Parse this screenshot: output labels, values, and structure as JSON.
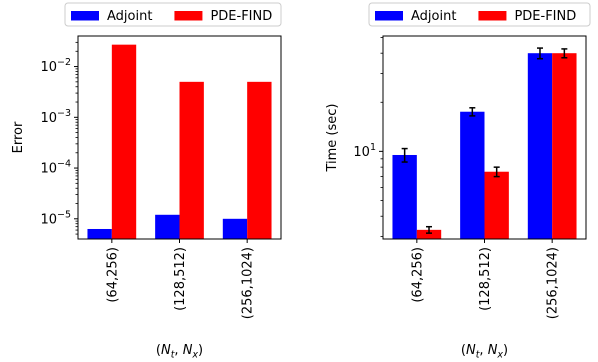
{
  "chart_data": [
    {
      "type": "bar",
      "ylabel": "Error",
      "xlabel_base": "N",
      "xlabel_sub1": "t",
      "xlabel_sub2": "x",
      "yscale": "log",
      "ylim": [
        4e-06,
        0.04
      ],
      "categories": [
        "(64,256)",
        "(128,512)",
        "(256,1024)"
      ],
      "yticks": [
        {
          "value": 1e-05,
          "base": "10",
          "exp": "−5"
        },
        {
          "value": 0.0001,
          "base": "10",
          "exp": "−4"
        },
        {
          "value": 0.001,
          "base": "10",
          "exp": "−3"
        },
        {
          "value": 0.01,
          "base": "10",
          "exp": "−2"
        }
      ],
      "legend": "top",
      "series": [
        {
          "name": "Adjoint",
          "color": "#0000ff",
          "values": [
            6.3e-06,
            1.2e-05,
            1e-05
          ]
        },
        {
          "name": "PDE-FIND",
          "color": "#ff0000",
          "values": [
            0.027,
            0.005,
            0.005
          ]
        }
      ]
    },
    {
      "type": "bar",
      "ylabel": "Time (sec)",
      "xlabel_base": "N",
      "xlabel_sub1": "t",
      "xlabel_sub2": "x",
      "yscale": "log",
      "ylim": [
        2.9,
        51
      ],
      "categories": [
        "(64,256)",
        "(128,512)",
        "(256,1024)"
      ],
      "yticks": [
        {
          "value": 10,
          "base": "10",
          "exp": "1"
        }
      ],
      "legend": "top",
      "series": [
        {
          "name": "Adjoint",
          "color": "#0000ff",
          "values": [
            9.5,
            17.5,
            40
          ],
          "errors": [
            0.9,
            1.0,
            3.0
          ]
        },
        {
          "name": "PDE-FIND",
          "color": "#ff0000",
          "values": [
            3.3,
            7.5,
            40
          ],
          "errors": [
            0.15,
            0.5,
            2.5
          ]
        }
      ]
    }
  ]
}
